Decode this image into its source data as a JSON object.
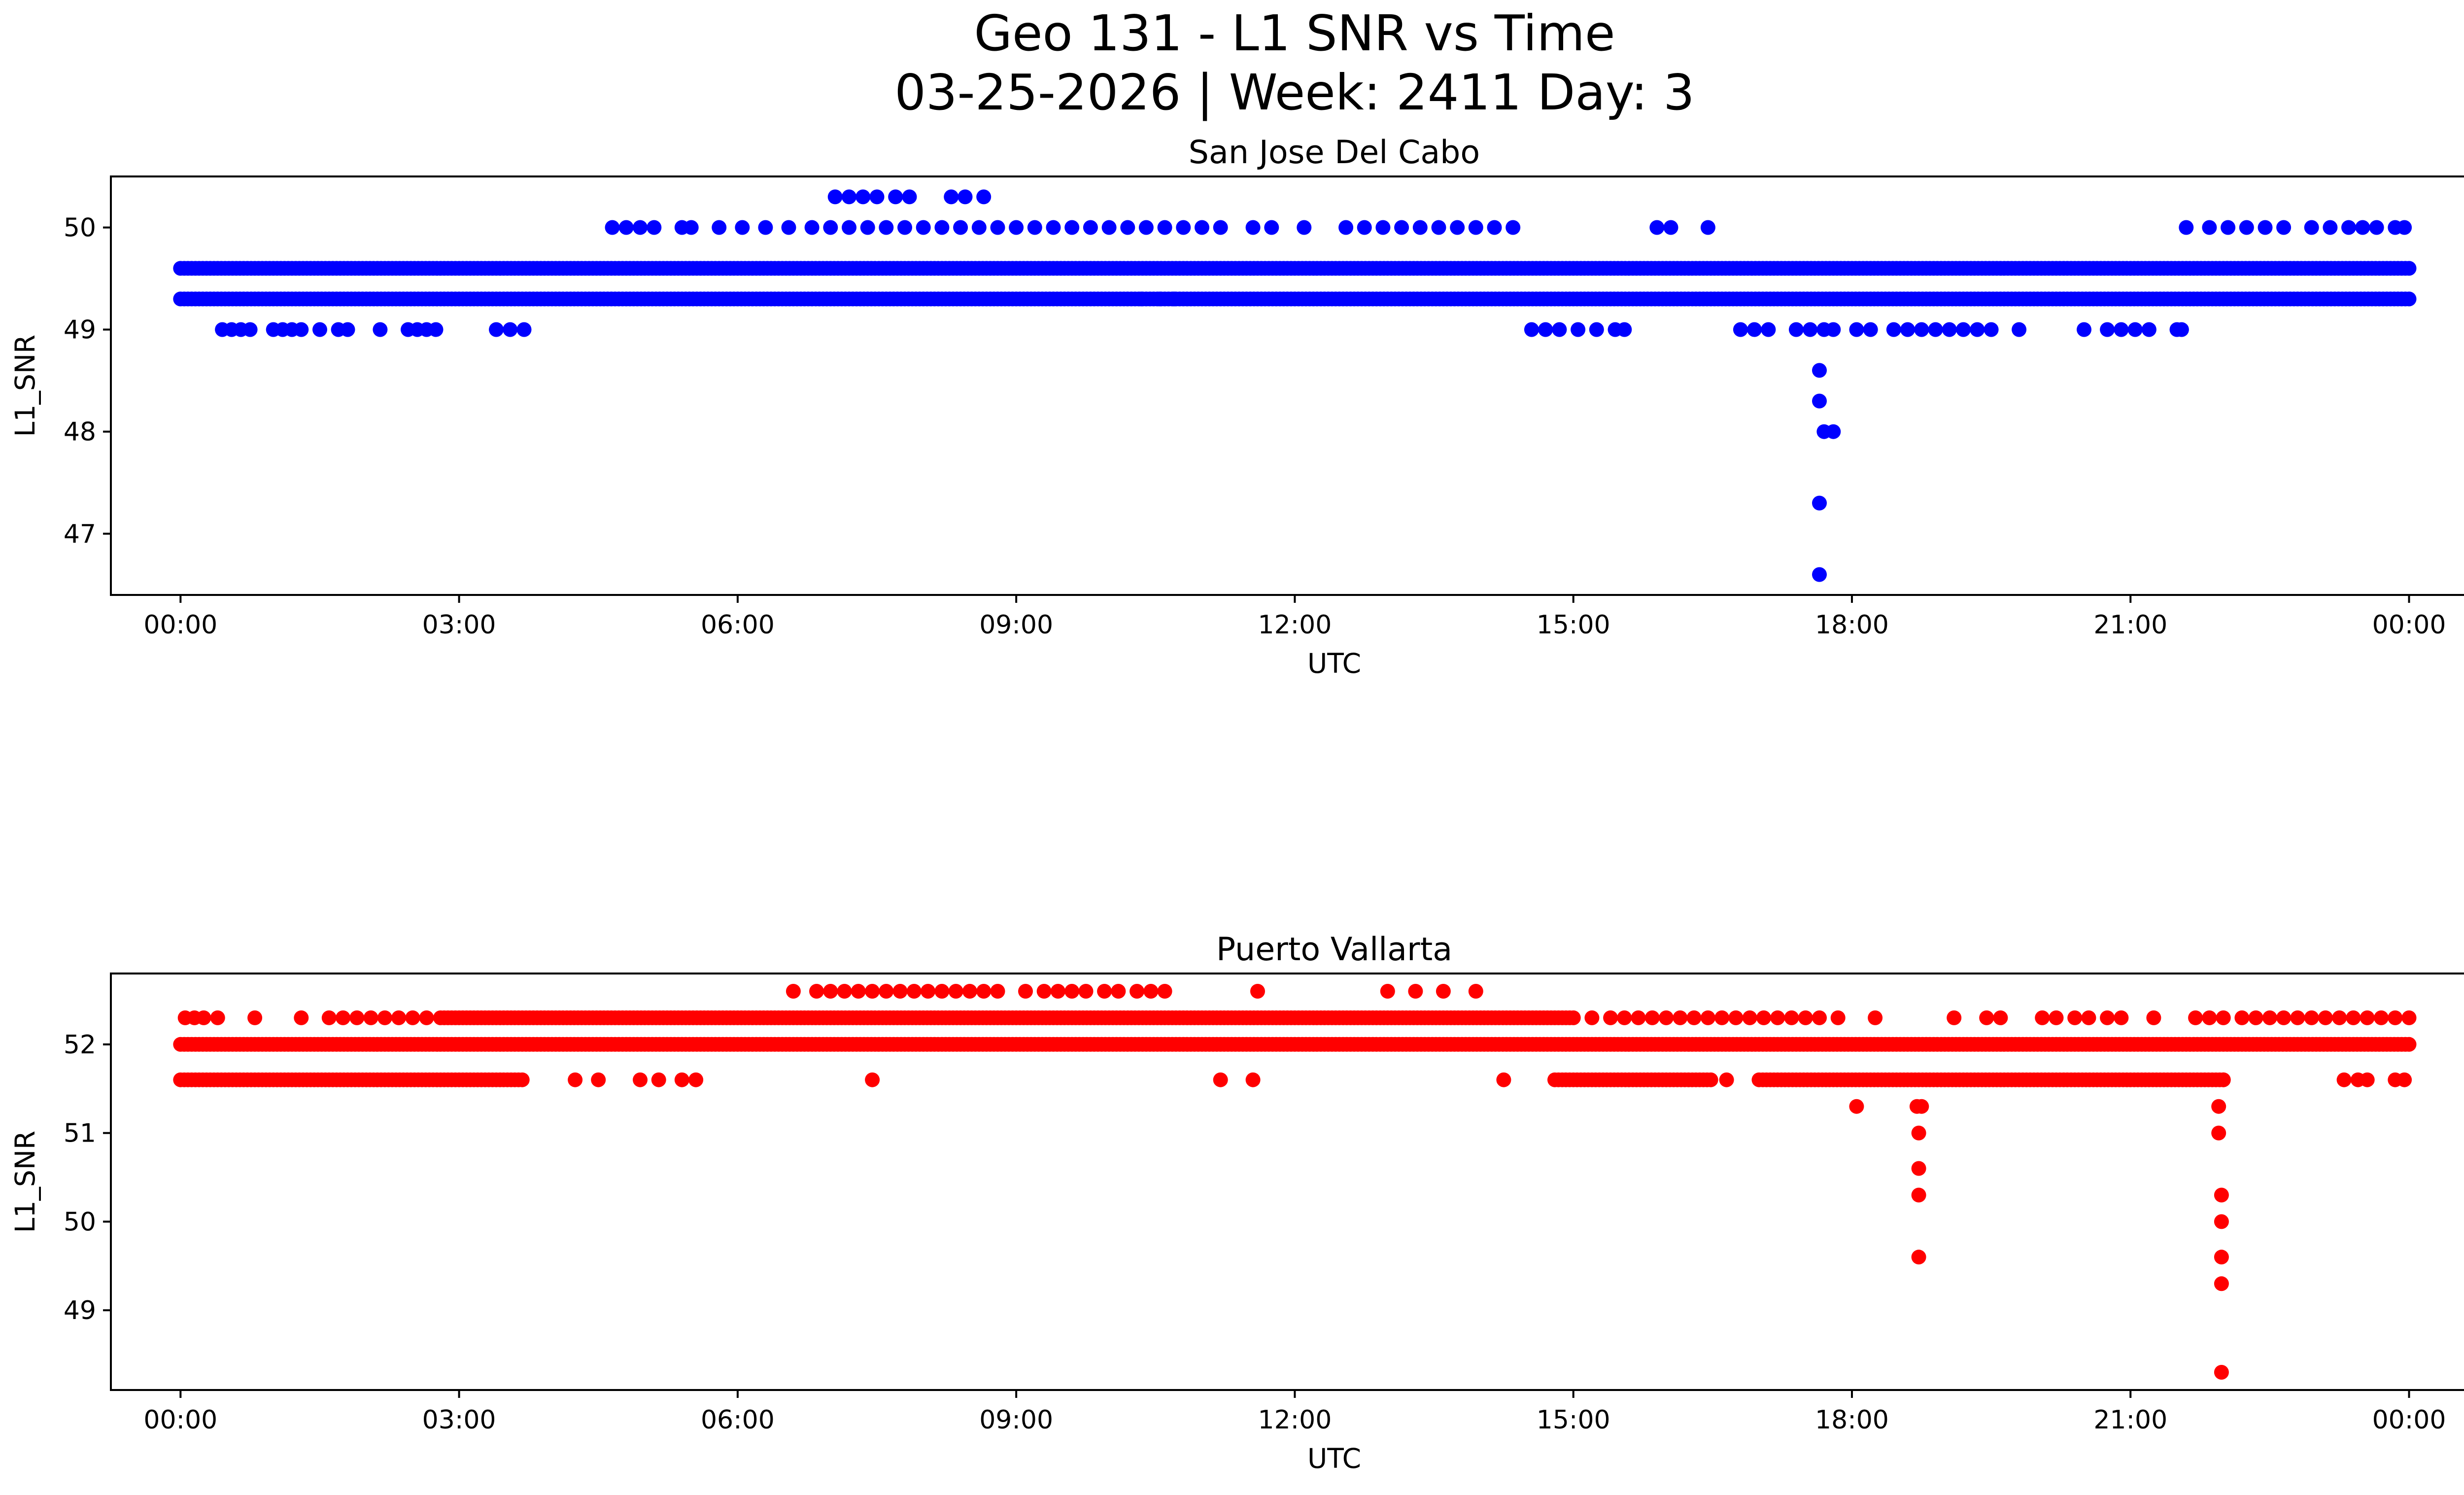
{
  "figure": {
    "title_line1": "Geo 131 - L1 SNR vs Time",
    "title_line2": "03-25-2026 | Week: 2411 Day: 3"
  },
  "chart_data": [
    {
      "type": "scatter",
      "title": "San Jose Del Cabo",
      "xlabel": "UTC",
      "ylabel": "L1_SNR",
      "color": "#0000ff",
      "x_unit": "hours",
      "xlim": [
        -0.75,
        25.6
      ],
      "ylim": [
        46.4,
        50.5
      ],
      "xticks": [
        0,
        3,
        6,
        9,
        12,
        15,
        18,
        21,
        24
      ],
      "xtick_labels": [
        "00:00",
        "03:00",
        "06:00",
        "09:00",
        "12:00",
        "15:00",
        "18:00",
        "21:00",
        "00:00"
      ],
      "yticks": [
        47,
        48,
        49,
        50
      ],
      "yticks_labels": [
        "47",
        "48",
        "49",
        "50"
      ],
      "bands": [
        {
          "y": 49.6,
          "ranges": [
            [
              0,
              24
            ]
          ]
        },
        {
          "y": 49.3,
          "ranges": [
            [
              0,
              24
            ]
          ]
        }
      ],
      "points": [
        [
          0.45,
          49.0
        ],
        [
          0.55,
          49.0
        ],
        [
          0.65,
          49.0
        ],
        [
          0.75,
          49.0
        ],
        [
          1.0,
          49.0
        ],
        [
          1.1,
          49.0
        ],
        [
          1.2,
          49.0
        ],
        [
          1.3,
          49.0
        ],
        [
          1.5,
          49.0
        ],
        [
          1.7,
          49.0
        ],
        [
          1.8,
          49.0
        ],
        [
          2.15,
          49.0
        ],
        [
          2.45,
          49.0
        ],
        [
          2.55,
          49.0
        ],
        [
          2.65,
          49.0
        ],
        [
          2.75,
          49.0
        ],
        [
          3.4,
          49.0
        ],
        [
          3.55,
          49.0
        ],
        [
          3.7,
          49.0
        ],
        [
          4.65,
          50.0
        ],
        [
          4.8,
          50.0
        ],
        [
          4.95,
          50.0
        ],
        [
          5.1,
          50.0
        ],
        [
          5.4,
          50.0
        ],
        [
          5.5,
          50.0
        ],
        [
          5.8,
          50.0
        ],
        [
          6.05,
          50.0
        ],
        [
          6.3,
          50.0
        ],
        [
          6.55,
          50.0
        ],
        [
          6.8,
          50.0
        ],
        [
          7.0,
          50.0
        ],
        [
          7.2,
          50.0
        ],
        [
          7.4,
          50.0
        ],
        [
          7.6,
          50.0
        ],
        [
          7.8,
          50.0
        ],
        [
          8.0,
          50.0
        ],
        [
          8.2,
          50.0
        ],
        [
          8.4,
          50.0
        ],
        [
          8.6,
          50.0
        ],
        [
          8.8,
          50.0
        ],
        [
          9.0,
          50.0
        ],
        [
          9.2,
          50.0
        ],
        [
          9.4,
          50.0
        ],
        [
          9.6,
          50.0
        ],
        [
          9.8,
          50.0
        ],
        [
          10.0,
          50.0
        ],
        [
          10.2,
          50.0
        ],
        [
          10.4,
          50.0
        ],
        [
          10.6,
          50.0
        ],
        [
          10.8,
          50.0
        ],
        [
          11.0,
          50.0
        ],
        [
          11.2,
          50.0
        ],
        [
          11.55,
          50.0
        ],
        [
          11.75,
          50.0
        ],
        [
          12.1,
          50.0
        ],
        [
          12.55,
          50.0
        ],
        [
          12.75,
          50.0
        ],
        [
          12.95,
          50.0
        ],
        [
          13.15,
          50.0
        ],
        [
          13.35,
          50.0
        ],
        [
          13.55,
          50.0
        ],
        [
          13.75,
          50.0
        ],
        [
          13.95,
          50.0
        ],
        [
          14.15,
          50.0
        ],
        [
          14.35,
          50.0
        ],
        [
          15.9,
          50.0
        ],
        [
          16.05,
          50.0
        ],
        [
          16.45,
          50.0
        ],
        [
          21.6,
          50.0
        ],
        [
          21.85,
          50.0
        ],
        [
          22.05,
          50.0
        ],
        [
          22.25,
          50.0
        ],
        [
          22.45,
          50.0
        ],
        [
          22.65,
          50.0
        ],
        [
          22.95,
          50.0
        ],
        [
          23.15,
          50.0
        ],
        [
          23.35,
          50.0
        ],
        [
          23.5,
          50.0
        ],
        [
          23.65,
          50.0
        ],
        [
          23.85,
          50.0
        ],
        [
          23.95,
          50.0
        ],
        [
          7.05,
          50.3
        ],
        [
          7.2,
          50.3
        ],
        [
          7.35,
          50.3
        ],
        [
          7.5,
          50.3
        ],
        [
          7.7,
          50.3
        ],
        [
          7.85,
          50.3
        ],
        [
          8.3,
          50.3
        ],
        [
          8.45,
          50.3
        ],
        [
          8.65,
          50.3
        ],
        [
          10.35,
          49.3
        ],
        [
          10.55,
          49.3
        ],
        [
          10.7,
          49.3
        ],
        [
          14.55,
          49.0
        ],
        [
          14.7,
          49.0
        ],
        [
          14.85,
          49.0
        ],
        [
          15.05,
          49.0
        ],
        [
          15.25,
          49.0
        ],
        [
          15.45,
          49.0
        ],
        [
          15.55,
          49.0
        ],
        [
          16.8,
          49.0
        ],
        [
          16.95,
          49.0
        ],
        [
          17.1,
          49.0
        ],
        [
          17.4,
          49.0
        ],
        [
          17.55,
          49.0
        ],
        [
          17.7,
          49.0
        ],
        [
          17.8,
          49.0
        ],
        [
          18.05,
          49.0
        ],
        [
          18.2,
          49.0
        ],
        [
          18.45,
          49.0
        ],
        [
          18.6,
          49.0
        ],
        [
          18.75,
          49.0
        ],
        [
          18.9,
          49.0
        ],
        [
          19.05,
          49.0
        ],
        [
          19.2,
          49.0
        ],
        [
          19.35,
          49.0
        ],
        [
          19.5,
          49.0
        ],
        [
          19.8,
          49.0
        ],
        [
          20.5,
          49.0
        ],
        [
          20.75,
          49.0
        ],
        [
          20.9,
          49.0
        ],
        [
          21.05,
          49.0
        ],
        [
          21.2,
          49.0
        ],
        [
          21.5,
          49.0
        ],
        [
          21.55,
          49.0
        ],
        [
          17.65,
          48.6
        ],
        [
          17.65,
          48.3
        ],
        [
          17.7,
          48.0
        ],
        [
          17.8,
          48.0
        ],
        [
          17.65,
          47.3
        ],
        [
          17.65,
          46.6
        ]
      ]
    },
    {
      "type": "scatter",
      "title": "Puerto Vallarta",
      "xlabel": "UTC",
      "ylabel": "L1_SNR",
      "color": "#ff0000",
      "x_unit": "hours",
      "xlim": [
        -0.75,
        25.6
      ],
      "ylim": [
        48.1,
        52.8
      ],
      "xticks": [
        0,
        3,
        6,
        9,
        12,
        15,
        18,
        21,
        24
      ],
      "xtick_labels": [
        "00:00",
        "03:00",
        "06:00",
        "09:00",
        "12:00",
        "15:00",
        "18:00",
        "21:00",
        "00:00"
      ],
      "yticks": [
        49,
        50,
        51,
        52
      ],
      "yticks_labels": [
        "49",
        "50",
        "51",
        "52"
      ],
      "bands": [
        {
          "y": 52.3,
          "ranges": [
            [
              2.8,
              15.0
            ]
          ]
        },
        {
          "y": 52.0,
          "ranges": [
            [
              0,
              24
            ]
          ]
        },
        {
          "y": 51.6,
          "ranges": [
            [
              0,
              3.7
            ],
            [
              14.8,
              16.5
            ],
            [
              17.0,
              22.0
            ]
          ]
        }
      ],
      "points": [
        [
          0.05,
          52.3
        ],
        [
          0.15,
          52.3
        ],
        [
          0.25,
          52.3
        ],
        [
          0.4,
          52.3
        ],
        [
          0.8,
          52.3
        ],
        [
          1.3,
          52.3
        ],
        [
          1.6,
          52.3
        ],
        [
          1.75,
          52.3
        ],
        [
          1.9,
          52.3
        ],
        [
          2.05,
          52.3
        ],
        [
          2.2,
          52.3
        ],
        [
          2.35,
          52.3
        ],
        [
          2.5,
          52.3
        ],
        [
          2.65,
          52.3
        ],
        [
          15.2,
          52.3
        ],
        [
          15.4,
          52.3
        ],
        [
          15.55,
          52.3
        ],
        [
          15.7,
          52.3
        ],
        [
          15.85,
          52.3
        ],
        [
          16.0,
          52.3
        ],
        [
          16.15,
          52.3
        ],
        [
          16.3,
          52.3
        ],
        [
          16.45,
          52.3
        ],
        [
          16.6,
          52.3
        ],
        [
          16.75,
          52.3
        ],
        [
          16.9,
          52.3
        ],
        [
          17.05,
          52.3
        ],
        [
          17.2,
          52.3
        ],
        [
          17.35,
          52.3
        ],
        [
          17.5,
          52.3
        ],
        [
          17.65,
          52.3
        ],
        [
          17.85,
          52.3
        ],
        [
          18.25,
          52.3
        ],
        [
          19.1,
          52.3
        ],
        [
          19.45,
          52.3
        ],
        [
          19.6,
          52.3
        ],
        [
          20.05,
          52.3
        ],
        [
          20.2,
          52.3
        ],
        [
          20.4,
          52.3
        ],
        [
          20.55,
          52.3
        ],
        [
          20.75,
          52.3
        ],
        [
          20.9,
          52.3
        ],
        [
          21.25,
          52.3
        ],
        [
          21.7,
          52.3
        ],
        [
          21.85,
          52.3
        ],
        [
          22.0,
          52.3
        ],
        [
          22.2,
          52.3
        ],
        [
          22.35,
          52.3
        ],
        [
          22.5,
          52.3
        ],
        [
          22.65,
          52.3
        ],
        [
          22.8,
          52.3
        ],
        [
          22.95,
          52.3
        ],
        [
          23.1,
          52.3
        ],
        [
          23.25,
          52.3
        ],
        [
          23.4,
          52.3
        ],
        [
          23.55,
          52.3
        ],
        [
          23.7,
          52.3
        ],
        [
          23.85,
          52.3
        ],
        [
          24.0,
          52.3
        ],
        [
          6.6,
          52.6
        ],
        [
          6.85,
          52.6
        ],
        [
          7.0,
          52.6
        ],
        [
          7.15,
          52.6
        ],
        [
          7.3,
          52.6
        ],
        [
          7.45,
          52.6
        ],
        [
          7.6,
          52.6
        ],
        [
          7.75,
          52.6
        ],
        [
          7.9,
          52.6
        ],
        [
          8.05,
          52.6
        ],
        [
          8.2,
          52.6
        ],
        [
          8.35,
          52.6
        ],
        [
          8.5,
          52.6
        ],
        [
          8.65,
          52.6
        ],
        [
          8.8,
          52.6
        ],
        [
          9.1,
          52.6
        ],
        [
          9.3,
          52.6
        ],
        [
          9.45,
          52.6
        ],
        [
          9.6,
          52.6
        ],
        [
          9.75,
          52.6
        ],
        [
          9.95,
          52.6
        ],
        [
          10.1,
          52.6
        ],
        [
          10.3,
          52.6
        ],
        [
          10.45,
          52.6
        ],
        [
          10.6,
          52.6
        ],
        [
          11.6,
          52.6
        ],
        [
          13.0,
          52.6
        ],
        [
          13.3,
          52.6
        ],
        [
          13.6,
          52.6
        ],
        [
          13.95,
          52.6
        ],
        [
          4.25,
          51.6
        ],
        [
          4.5,
          51.6
        ],
        [
          4.95,
          51.6
        ],
        [
          5.15,
          51.6
        ],
        [
          5.4,
          51.6
        ],
        [
          5.55,
          51.6
        ],
        [
          7.45,
          51.6
        ],
        [
          11.2,
          51.6
        ],
        [
          11.55,
          51.6
        ],
        [
          14.25,
          51.6
        ],
        [
          16.65,
          51.6
        ],
        [
          22.0,
          51.6
        ],
        [
          23.3,
          51.6
        ],
        [
          23.45,
          51.6
        ],
        [
          23.55,
          51.6
        ],
        [
          23.85,
          51.6
        ],
        [
          23.95,
          51.6
        ],
        [
          18.05,
          51.3
        ],
        [
          18.7,
          51.3
        ],
        [
          18.75,
          51.3
        ],
        [
          18.72,
          51.0
        ],
        [
          18.72,
          50.6
        ],
        [
          18.72,
          50.3
        ],
        [
          18.72,
          49.6
        ],
        [
          21.95,
          51.3
        ],
        [
          21.95,
          51.0
        ],
        [
          21.98,
          50.3
        ],
        [
          21.98,
          50.0
        ],
        [
          21.98,
          49.6
        ],
        [
          21.98,
          49.3
        ],
        [
          21.98,
          48.3
        ]
      ]
    }
  ]
}
